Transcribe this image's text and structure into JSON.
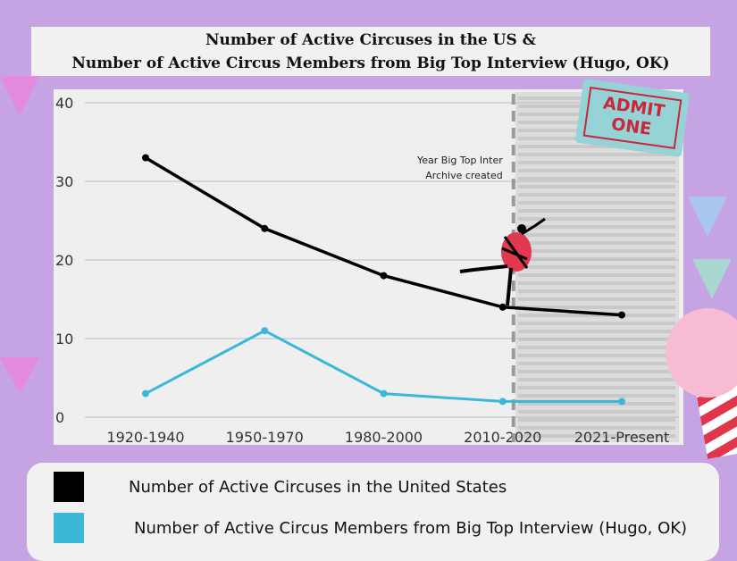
{
  "title_lines": [
    "Number of Active Circuses in the US &",
    "Number of Active Circus Members from Big Top Interview (Hugo, OK)"
  ],
  "ticket": {
    "line1": "ADMIT",
    "line2": "ONE"
  },
  "chart_data": {
    "type": "line",
    "categories": [
      "1920-1940",
      "1950-1970",
      "1980-2000",
      "2010-2020",
      "2021-Present"
    ],
    "series": [
      {
        "name": "Number of Active Circuses in the United States",
        "color": "#000000",
        "values": [
          33,
          24,
          18,
          14,
          13
        ]
      },
      {
        "name": "Number of Active Circus Members from Big Top Interview (Hugo, OK)",
        "color": "#3bb8d8",
        "values": [
          3,
          11,
          3,
          2,
          2
        ]
      }
    ],
    "ylim": [
      0,
      40
    ],
    "yticks": [
      0,
      10,
      20,
      30,
      40
    ],
    "annotation": {
      "text_lines": [
        "Year Big Top Inter",
        "Archive created"
      ],
      "at_category": "2010-2020"
    },
    "grid": true,
    "legend_position": "bottom"
  }
}
